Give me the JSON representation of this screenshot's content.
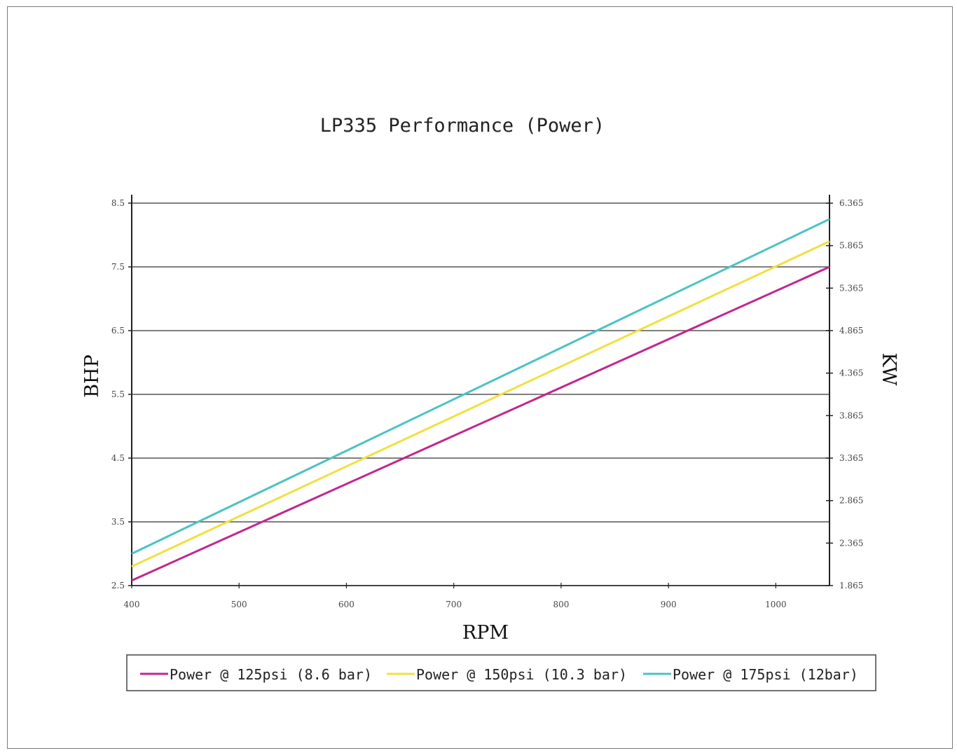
{
  "chart_data": {
    "type": "line",
    "title": "LP335 Performance (Power)",
    "xlabel": "RPM",
    "ylabel": "BHP",
    "y2label": "KW",
    "xlim": [
      400,
      1050
    ],
    "ylim": [
      2.5,
      8.5
    ],
    "y2lim": [
      1.865,
      6.365
    ],
    "x_ticks": [
      400,
      500,
      600,
      700,
      800,
      900,
      1000
    ],
    "x_tick_labels": [
      "400",
      "500",
      "600",
      "700",
      "800",
      "900",
      "1000"
    ],
    "y_ticks": [
      2.5,
      3.5,
      4.5,
      5.5,
      6.5,
      7.5,
      8.5
    ],
    "y_tick_labels": [
      "2.5",
      "3.5",
      "4.5",
      "5.5",
      "6.5",
      "7.5",
      "8.5"
    ],
    "y2_ticks": [
      1.865,
      2.365,
      2.865,
      3.365,
      3.865,
      4.365,
      4.865,
      5.365,
      5.865,
      6.365
    ],
    "y2_tick_labels": [
      "1.865",
      "2.365",
      "2.865",
      "3.365",
      "3.865",
      "4.365",
      "4.865",
      "5.365",
      "5.865",
      "6.365"
    ],
    "grid": "horizontal",
    "legend_position": "bottom",
    "series": [
      {
        "name": "Power @ 125psi (8.6 bar)",
        "color": "#c2268f",
        "x": [
          400,
          1050
        ],
        "y": [
          2.58,
          7.5
        ]
      },
      {
        "name": "Power @ 150psi (10.3 bar)",
        "color": "#f0e040",
        "x": [
          400,
          1050
        ],
        "y": [
          2.8,
          7.9
        ]
      },
      {
        "name": "Power @ 175psi (12bar)",
        "color": "#4cc3c3",
        "x": [
          400,
          1050
        ],
        "y": [
          3.0,
          8.25
        ]
      }
    ]
  }
}
